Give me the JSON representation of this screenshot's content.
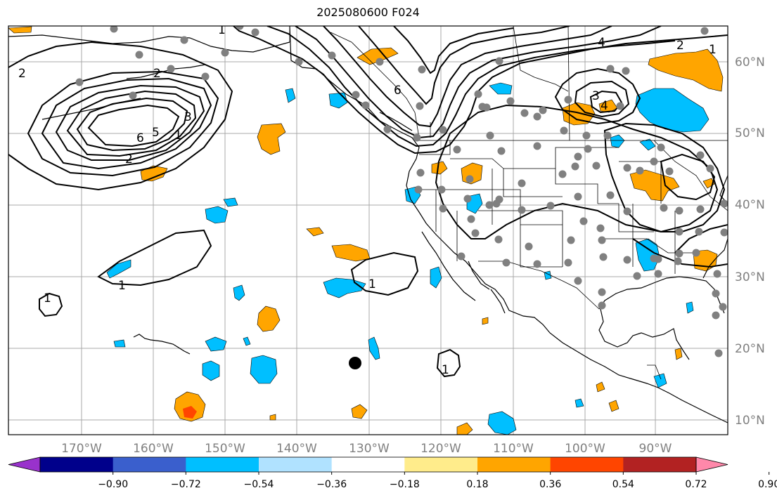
{
  "title": "2025080600 F024",
  "map": {
    "lon_labels": [
      "170°W",
      "160°W",
      "150°W",
      "140°W",
      "130°W",
      "120°W",
      "110°W",
      "100°W",
      "90°W"
    ],
    "lat_labels": [
      "60°N",
      "50°N",
      "40°N",
      "30°N",
      "20°N",
      "10°N"
    ],
    "contour_labels": [
      "2",
      "2",
      "6",
      "5",
      "1",
      "3",
      "2",
      "1",
      "6",
      "4",
      "2",
      "1",
      "3",
      "4",
      "1",
      "1",
      "1",
      "1"
    ],
    "colors": {
      "ocean_land": "#ffffff",
      "grid": "#a0a0a0",
      "positive_fill": "#ffa500",
      "strong_positive_fill": "#ff4500",
      "negative_fill": "#00bfff",
      "station_dot": "#808080",
      "contour": "#000000"
    }
  },
  "colorbar": {
    "ticks": [
      "−0.90",
      "−0.72",
      "−0.54",
      "−0.36",
      "−0.18",
      "0.18",
      "0.36",
      "0.54",
      "0.72",
      "0.90"
    ],
    "colors": [
      "#9932cc",
      "#00008b",
      "#3a5fcd",
      "#00bfff",
      "#b0e2ff",
      "#ffffff",
      "#ffec8b",
      "#ffa500",
      "#ff4500",
      "#b22222",
      "#ff88aa"
    ]
  }
}
